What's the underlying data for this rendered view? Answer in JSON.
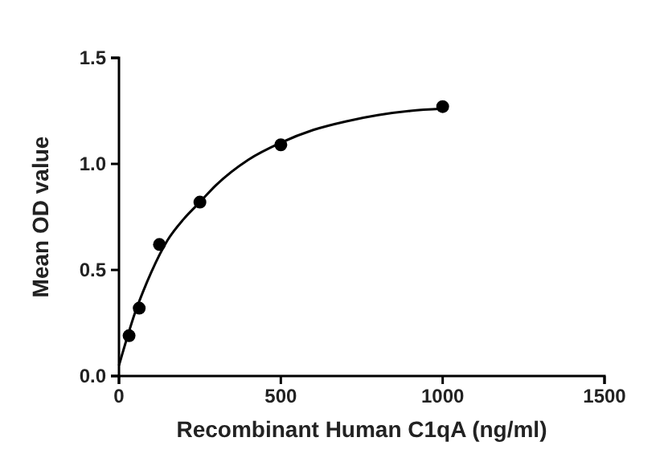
{
  "chart_data": {
    "type": "scatter",
    "xlabel": "Recombinant Human C1qA (ng/ml)",
    "ylabel": "Mean OD value",
    "xlim": [
      0,
      1500
    ],
    "xticks": [
      0,
      500,
      1000,
      1500
    ],
    "ylim": [
      0,
      1.5
    ],
    "yticks": [
      {
        "value": 0,
        "label": "0.0"
      },
      {
        "value": 0.5,
        "label": "0.5"
      },
      {
        "value": 1,
        "label": "1.0"
      },
      {
        "value": 1.5,
        "label": "1.5"
      }
    ],
    "marker": "circle",
    "grid": false,
    "series": [
      {
        "color": "#000000",
        "x": [
          31.25,
          62.5,
          125,
          250,
          500,
          1000
        ],
        "values": [
          0.19,
          0.32,
          0.62,
          0.82,
          1.09,
          1.27
        ]
      },
      {
        "type": "line",
        "color": "#000000",
        "line_style": "solid",
        "marker": "none",
        "x": [
          0,
          25,
          50,
          75,
          100,
          150,
          200,
          250,
          300,
          400,
          500,
          600,
          700,
          800,
          900,
          1000
        ],
        "values": [
          0.05,
          0.18,
          0.3,
          0.4,
          0.49,
          0.64,
          0.74,
          0.82,
          0.9,
          1.02,
          1.1,
          1.16,
          1.2,
          1.23,
          1.25,
          1.26
        ]
      }
    ]
  }
}
